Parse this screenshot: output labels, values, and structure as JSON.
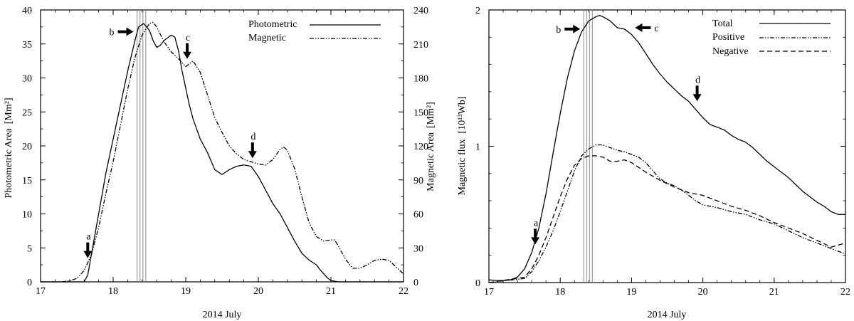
{
  "chart_data": [
    {
      "id": "left",
      "type": "line",
      "title": "",
      "xlabel": "2014 July",
      "ylabel": "Photometric Area",
      "ylabel_unit": "[Mm²]",
      "y2label": "Magnetic Area",
      "y2label_unit": "[Mm²]",
      "xlim": [
        17,
        22
      ],
      "ylim": [
        0,
        40
      ],
      "y2lim": [
        0,
        240
      ],
      "xticks": [
        "17",
        "18",
        "19",
        "20",
        "21",
        "22"
      ],
      "yticks": [
        "0",
        "5",
        "10",
        "15",
        "20",
        "25",
        "30",
        "35",
        "40"
      ],
      "y2ticks": [
        "0",
        "30",
        "60",
        "90",
        "120",
        "150",
        "180",
        "210",
        "240"
      ],
      "legend_position": "top-right",
      "series": [
        {
          "name": "Photometric",
          "axis": "left",
          "style": "solid",
          "x": [
            17.6,
            17.65,
            17.7,
            17.8,
            17.9,
            18.0,
            18.1,
            18.2,
            18.3,
            18.35,
            18.42,
            18.5,
            18.55,
            18.6,
            18.65,
            18.7,
            18.8,
            18.85,
            18.9,
            18.95,
            19.0,
            19.05,
            19.1,
            19.2,
            19.3,
            19.4,
            19.5,
            19.6,
            19.7,
            19.8,
            19.9,
            20.0,
            20.1,
            20.2,
            20.3,
            20.4,
            20.5,
            20.6,
            20.7,
            20.8,
            20.85,
            20.9,
            20.95,
            21.0,
            21.1,
            21.2,
            22.0
          ],
          "values": [
            0,
            1,
            4,
            10,
            16,
            21,
            26,
            31,
            35.5,
            37.5,
            38,
            37,
            35.5,
            34.5,
            34.8,
            35.5,
            36.3,
            36,
            34,
            31,
            28.5,
            26,
            24,
            21,
            19,
            16.5,
            15.8,
            16.5,
            17,
            17.2,
            17,
            15.5,
            13.5,
            11.5,
            10,
            8,
            6,
            4.2,
            3.2,
            2.5,
            1.8,
            1.2,
            0.6,
            0.2,
            0,
            0,
            0
          ]
        },
        {
          "name": "Magnetic",
          "axis": "right",
          "style": "dash-dot-dot",
          "x": [
            17.0,
            17.3,
            17.4,
            17.5,
            17.6,
            17.7,
            17.8,
            17.9,
            18.0,
            18.1,
            18.2,
            18.3,
            18.4,
            18.5,
            18.55,
            18.6,
            18.7,
            18.8,
            18.9,
            19.0,
            19.1,
            19.2,
            19.3,
            19.4,
            19.5,
            19.6,
            19.7,
            19.8,
            19.9,
            20.0,
            20.1,
            20.2,
            20.3,
            20.35,
            20.4,
            20.5,
            20.6,
            20.7,
            20.8,
            20.9,
            21.0,
            21.05,
            21.1,
            21.2,
            21.3,
            21.4,
            21.5,
            21.6,
            21.7,
            21.8,
            21.9,
            22.0
          ],
          "values": [
            0,
            0,
            1,
            3,
            10,
            24,
            48,
            78,
            106,
            138,
            170,
            198,
            218,
            228,
            229,
            225,
            212,
            203,
            197,
            190,
            195,
            185,
            165,
            145,
            132,
            120,
            113,
            108,
            106,
            104,
            103,
            108,
            117,
            119,
            116,
            100,
            75,
            52,
            40,
            36,
            37,
            37,
            32,
            20,
            12,
            12,
            15,
            19,
            20,
            19,
            13,
            7
          ]
        }
      ],
      "annotations": [
        {
          "label": "a",
          "arrow": "down"
        },
        {
          "label": "b",
          "arrow": "right"
        },
        {
          "label": "c",
          "arrow": "down"
        },
        {
          "label": "d",
          "arrow": "down"
        }
      ],
      "vertical_lines_x": [
        18.33,
        18.37,
        18.41,
        18.45
      ]
    },
    {
      "id": "right",
      "type": "line",
      "title": "",
      "xlabel": "2014 July",
      "ylabel": "Magnetic flux",
      "ylabel_unit": "[10¹³Wb]",
      "xlim": [
        17,
        22
      ],
      "ylim": [
        0,
        2
      ],
      "xticks": [
        "17",
        "18",
        "19",
        "20",
        "21",
        "22"
      ],
      "yticks": [
        "0",
        "1",
        "2"
      ],
      "legend_position": "top-right",
      "series": [
        {
          "name": "Total",
          "style": "solid",
          "x": [
            17.0,
            17.1,
            17.2,
            17.3,
            17.4,
            17.5,
            17.6,
            17.7,
            17.8,
            17.9,
            18.0,
            18.1,
            18.2,
            18.3,
            18.4,
            18.5,
            18.55,
            18.6,
            18.7,
            18.8,
            18.9,
            19.0,
            19.1,
            19.2,
            19.3,
            19.4,
            19.5,
            19.6,
            19.7,
            19.8,
            19.9,
            20.0,
            20.1,
            20.2,
            20.3,
            20.4,
            20.5,
            20.6,
            20.7,
            20.8,
            20.9,
            21.0,
            21.1,
            21.2,
            21.3,
            21.4,
            21.5,
            21.6,
            21.7,
            21.8,
            21.9,
            22.0
          ],
          "values": [
            0.02,
            0.015,
            0.015,
            0.02,
            0.04,
            0.1,
            0.22,
            0.4,
            0.65,
            0.95,
            1.24,
            1.5,
            1.7,
            1.84,
            1.92,
            1.95,
            1.96,
            1.95,
            1.92,
            1.87,
            1.86,
            1.82,
            1.76,
            1.68,
            1.6,
            1.53,
            1.47,
            1.42,
            1.37,
            1.33,
            1.27,
            1.21,
            1.16,
            1.14,
            1.12,
            1.08,
            1.05,
            1.03,
            0.99,
            0.94,
            0.89,
            0.85,
            0.81,
            0.77,
            0.72,
            0.67,
            0.63,
            0.59,
            0.56,
            0.52,
            0.5,
            0.5
          ]
        },
        {
          "name": "Positive",
          "style": "dash-dot-dot",
          "x": [
            17.5,
            17.6,
            17.7,
            17.8,
            17.9,
            18.0,
            18.1,
            18.2,
            18.3,
            18.4,
            18.5,
            18.6,
            18.7,
            18.8,
            18.9,
            19.0,
            19.1,
            19.2,
            19.3,
            19.4,
            19.5,
            19.6,
            19.7,
            19.8,
            19.9,
            20.0,
            20.2,
            20.4,
            20.6,
            20.8,
            21.0,
            21.2,
            21.4,
            21.6,
            21.8,
            22.0
          ],
          "values": [
            0.03,
            0.08,
            0.16,
            0.26,
            0.38,
            0.52,
            0.67,
            0.82,
            0.93,
            0.98,
            1.01,
            1.01,
            0.99,
            0.97,
            0.96,
            0.94,
            0.92,
            0.88,
            0.82,
            0.76,
            0.73,
            0.71,
            0.68,
            0.64,
            0.6,
            0.57,
            0.55,
            0.52,
            0.5,
            0.46,
            0.43,
            0.38,
            0.33,
            0.29,
            0.25,
            0.21
          ]
        },
        {
          "name": "Negative",
          "style": "dashed",
          "x": [
            17.5,
            17.6,
            17.7,
            17.8,
            17.9,
            18.0,
            18.1,
            18.2,
            18.3,
            18.4,
            18.5,
            18.6,
            18.7,
            18.8,
            18.9,
            19.0,
            19.2,
            19.4,
            19.6,
            19.8,
            20.0,
            20.2,
            20.4,
            20.6,
            20.8,
            21.0,
            21.2,
            21.4,
            21.6,
            21.8,
            22.0
          ],
          "values": [
            0.04,
            0.1,
            0.2,
            0.33,
            0.48,
            0.63,
            0.76,
            0.86,
            0.91,
            0.93,
            0.93,
            0.92,
            0.89,
            0.89,
            0.9,
            0.88,
            0.81,
            0.75,
            0.7,
            0.66,
            0.64,
            0.6,
            0.56,
            0.53,
            0.49,
            0.44,
            0.4,
            0.36,
            0.31,
            0.26,
            0.29
          ]
        }
      ],
      "annotations": [
        {
          "label": "a",
          "arrow": "down"
        },
        {
          "label": "b",
          "arrow": "right"
        },
        {
          "label": "c",
          "arrow": "left"
        },
        {
          "label": "d",
          "arrow": "down"
        }
      ],
      "vertical_lines_x": [
        18.33,
        18.37,
        18.41,
        18.45
      ]
    }
  ]
}
